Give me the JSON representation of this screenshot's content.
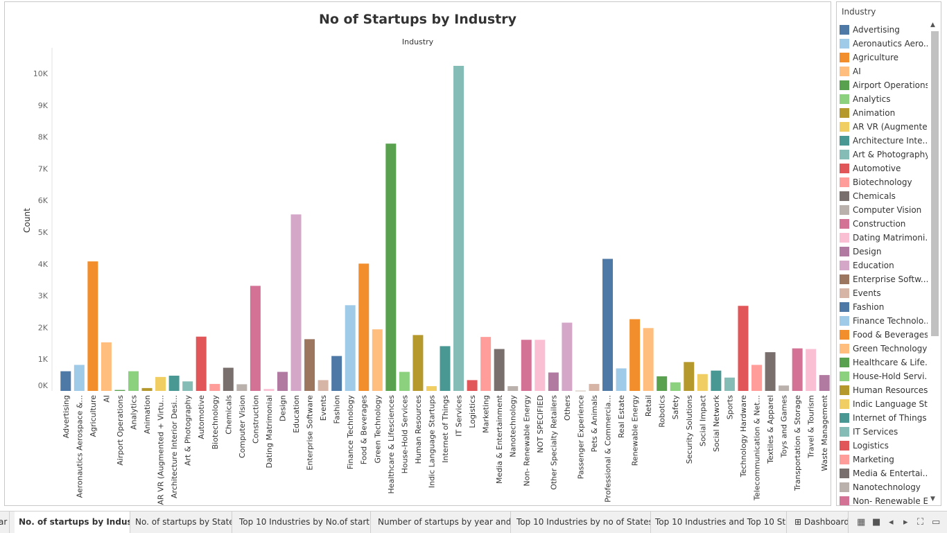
{
  "chart_data": {
    "type": "bar",
    "title": "No of Startups by Industry",
    "header": "Industry",
    "ylabel": "Count",
    "ylim": [
      0,
      10500
    ],
    "yticks": [
      0,
      1000,
      2000,
      3000,
      4000,
      5000,
      6000,
      7000,
      8000,
      9000,
      10000
    ],
    "ytick_labels": [
      "0K",
      "1K",
      "2K",
      "3K",
      "4K",
      "5K",
      "6K",
      "7K",
      "8K",
      "9K",
      "10K"
    ],
    "grid": false,
    "legend_placement": "right",
    "categories": [
      "Advertising",
      "Aeronautics Aerospace &...",
      "Agriculture",
      "AI",
      "Airport Operations",
      "Analytics",
      "Animation",
      "AR VR (Augmented + Virtu...",
      "Architecture Interior Desi...",
      "Art & Photography",
      "Automotive",
      "Biotechnology",
      "Chemicals",
      "Computer Vision",
      "Construction",
      "Dating Matrimonial",
      "Design",
      "Education",
      "Enterprise Software",
      "Events",
      "Fashion",
      "Finance Technology",
      "Food & Beverages",
      "Green Technology",
      "Healthcare & Lifesciences",
      "House-Hold Services",
      "Human Resources",
      "Indic Language Startups",
      "Internet of Things",
      "IT Services",
      "Logistics",
      "Marketing",
      "Media & Entertainment",
      "Nanotechnology",
      "Non- Renewable Energy",
      "NOT SPECIFIED",
      "Other Specialty Retailers",
      "Others",
      "Passenger Experience",
      "Pets & Animals",
      "Professional & Commercia...",
      "Real Estate",
      "Renewable Energy",
      "Retail",
      "Robotics",
      "Safety",
      "Security Solutions",
      "Social Impact",
      "Social Network",
      "Sports",
      "Technology Hardware",
      "Telecommunication & Net...",
      "Textiles & Apparel",
      "Toys and Games",
      "Transportation & Storage",
      "Travel & Tourism",
      "Waste Management"
    ],
    "values": [
      620,
      820,
      4080,
      1530,
      30,
      620,
      90,
      440,
      480,
      300,
      1710,
      220,
      730,
      210,
      3310,
      60,
      600,
      5560,
      1630,
      340,
      1100,
      2700,
      4010,
      1940,
      7790,
      600,
      1760,
      150,
      1410,
      10240,
      340,
      1700,
      1320,
      150,
      1610,
      1610,
      580,
      2150,
      5,
      220,
      4160,
      710,
      2260,
      1980,
      460,
      270,
      910,
      530,
      640,
      420,
      2680,
      820,
      1220,
      170,
      1340,
      1320,
      500
    ],
    "colors": [
      "#4e79a7",
      "#a0cbe8",
      "#f28e2b",
      "#ffbe7d",
      "#59a14f",
      "#8cd17d",
      "#b6992d",
      "#f1ce63",
      "#499894",
      "#86bcb6",
      "#e15759",
      "#ff9d9a",
      "#79706e",
      "#bab0ac",
      "#d37295",
      "#fabfd2",
      "#b07aa1",
      "#d4a6c8",
      "#9d7660",
      "#d7b5a6",
      "#4e79a7",
      "#a0cbe8",
      "#f28e2b",
      "#ffbe7d",
      "#59a14f",
      "#8cd17d",
      "#b6992d",
      "#f1ce63",
      "#499894",
      "#86bcb6",
      "#e15759",
      "#ff9d9a",
      "#79706e",
      "#bab0ac",
      "#d37295",
      "#fabfd2",
      "#b07aa1",
      "#d4a6c8",
      "#9d7660",
      "#d7b5a6",
      "#4e79a7",
      "#a0cbe8",
      "#f28e2b",
      "#ffbe7d",
      "#59a14f",
      "#8cd17d",
      "#b6992d",
      "#f1ce63",
      "#499894",
      "#86bcb6",
      "#e15759",
      "#ff9d9a",
      "#79706e",
      "#bab0ac",
      "#d37295",
      "#fabfd2",
      "#b07aa1"
    ]
  },
  "legend": {
    "title": "Industry",
    "items": [
      "Advertising",
      "Aeronautics Aero...",
      "Agriculture",
      "AI",
      "Airport Operations",
      "Analytics",
      "Animation",
      "AR VR (Augmente...",
      "Architecture Inte...",
      "Art & Photography",
      "Automotive",
      "Biotechnology",
      "Chemicals",
      "Computer Vision",
      "Construction",
      "Dating Matrimoni...",
      "Design",
      "Education",
      "Enterprise Softw...",
      "Events",
      "Fashion",
      "Finance Technolo...",
      "Food & Beverages",
      "Green Technology",
      "Healthcare & Life...",
      "House-Hold Servi...",
      "Human Resources",
      "Indic Language St...",
      "Internet of Things",
      "IT Services",
      "Logistics",
      "Marketing",
      "Media & Entertai...",
      "Nanotechnology",
      "Non- Renewable E..."
    ]
  },
  "tabs": [
    {
      "label": "ar",
      "active": false
    },
    {
      "label": "No. of startups by Industry",
      "active": true
    },
    {
      "label": "No. of startups by State",
      "active": false
    },
    {
      "label": "Top 10 Industries by No.of start...",
      "active": false
    },
    {
      "label": "Number of startups by year and ...",
      "active": false
    },
    {
      "label": "Top 10 Industries by no of States",
      "active": false
    },
    {
      "label": "Top 10 Industries and Top 10 St...",
      "active": false
    },
    {
      "label": "Dashboard",
      "active": false
    }
  ],
  "icons": {
    "dashboard_tab": "dashboard-grid-icon",
    "controls": [
      "sheet-sorter-icon",
      "filmstrip-icon",
      "prev-sheet-icon",
      "next-sheet-icon",
      "fit-screen-icon",
      "presentation-mode-icon"
    ]
  }
}
